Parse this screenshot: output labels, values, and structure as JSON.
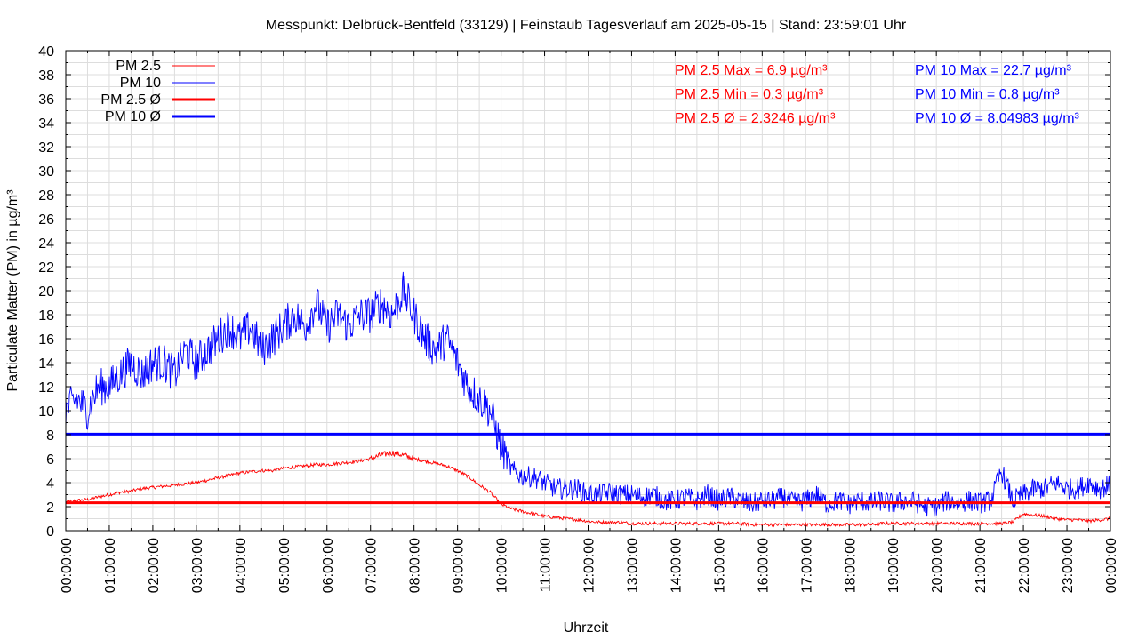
{
  "chart_data": {
    "type": "line",
    "title": "Messpunkt: Delbrück-Bentfeld (33129) | Feinstaub Tagesverlauf am 2025-05-15 | Stand: 23:59:01 Uhr",
    "xlabel": "Uhrzeit",
    "ylabel": "Particulate Matter (PM) in µg/m³",
    "ylim": [
      0,
      40
    ],
    "xlim_hours": [
      0,
      24
    ],
    "yticks": [
      "0",
      "2",
      "4",
      "6",
      "8",
      "10",
      "12",
      "14",
      "16",
      "18",
      "20",
      "22",
      "24",
      "26",
      "28",
      "30",
      "32",
      "34",
      "36",
      "38",
      "40"
    ],
    "xticks": [
      "00:00:00",
      "01:00:00",
      "02:00:00",
      "03:00:00",
      "04:00:00",
      "05:00:00",
      "06:00:00",
      "07:00:00",
      "08:00:00",
      "09:00:00",
      "10:00:00",
      "11:00:00",
      "12:00:00",
      "13:00:00",
      "14:00:00",
      "15:00:00",
      "16:00:00",
      "17:00:00",
      "18:00:00",
      "19:00:00",
      "20:00:00",
      "21:00:00",
      "22:00:00",
      "23:00:00",
      "00:00:00"
    ],
    "grid": true,
    "legend_position": "top-left",
    "sample_interval_minutes": 15,
    "series": [
      {
        "name": "PM 2.5",
        "color": "#ff0000",
        "noise": 0.25,
        "values": [
          2.4,
          2.5,
          2.6,
          2.8,
          3,
          3.2,
          3.3,
          3.5,
          3.6,
          3.7,
          3.8,
          3.9,
          4,
          4.2,
          4.4,
          4.6,
          4.8,
          4.9,
          5,
          5,
          5.2,
          5.3,
          5.4,
          5.5,
          5.5,
          5.6,
          5.7,
          5.8,
          6,
          6.3,
          6.5,
          6.3,
          6,
          5.8,
          5.6,
          5.4,
          5,
          4.5,
          3.8,
          3.2,
          2.2,
          1.8,
          1.6,
          1.4,
          1.2,
          1.1,
          1,
          0.9,
          0.8,
          0.7,
          0.7,
          0.7,
          0.6,
          0.6,
          0.6,
          0.6,
          0.6,
          0.6,
          0.6,
          0.6,
          0.6,
          0.6,
          0.6,
          0.5,
          0.5,
          0.5,
          0.5,
          0.5,
          0.5,
          0.5,
          0.5,
          0.5,
          0.5,
          0.5,
          0.5,
          0.6,
          0.6,
          0.6,
          0.6,
          0.6,
          0.6,
          0.6,
          0.6,
          0.6,
          0.6,
          0.6,
          0.6,
          0.7,
          1.4,
          1.3,
          1.2,
          1,
          0.9,
          0.9,
          0.8,
          0.9,
          1.0
        ]
      },
      {
        "name": "PM 10",
        "color": "#0000ff",
        "noise": 1.6,
        "values": [
          10,
          11,
          10,
          12,
          12,
          13,
          14,
          13,
          14,
          14,
          13,
          15,
          14,
          15,
          16,
          17,
          16,
          17,
          15,
          16,
          17,
          18,
          17,
          19,
          17,
          18,
          17,
          18,
          18,
          19,
          18,
          20,
          18,
          16,
          15,
          16,
          14,
          12,
          11,
          10,
          7,
          5,
          4.5,
          4.5,
          4,
          3.5,
          3.5,
          3.5,
          3,
          3,
          3.2,
          3,
          3,
          2.8,
          3,
          2.5,
          2.5,
          2.8,
          2.5,
          3,
          2.5,
          2.8,
          2.5,
          2.2,
          2.5,
          2.5,
          2.8,
          2.3,
          2.5,
          3,
          2.2,
          2.5,
          2.2,
          2.5,
          2.3,
          2.5,
          2.2,
          2.5,
          2.4,
          2,
          2,
          2.5,
          2.3,
          2.5,
          2.3,
          2.5,
          5,
          2.5,
          3,
          3.5,
          3.5,
          4,
          3.5,
          3.5,
          4,
          3.5,
          3.8
        ]
      },
      {
        "name": "PM 2.5 Ø",
        "color": "#ff0000",
        "constant": 2.3246
      },
      {
        "name": "PM 10 Ø",
        "color": "#0000ff",
        "constant": 8.04983
      }
    ],
    "annotations": {
      "pm25": [
        "PM 2.5 Max = 6.9 µg/m³",
        "PM 2.5 Min = 0.3 µg/m³",
        "PM 2.5 Ø = 2.3246 µg/m³"
      ],
      "pm10": [
        "PM 10 Max = 22.7 µg/m³",
        "PM 10 Min = 0.8 µg/m³",
        "PM 10 Ø = 8.04983 µg/m³"
      ]
    }
  }
}
